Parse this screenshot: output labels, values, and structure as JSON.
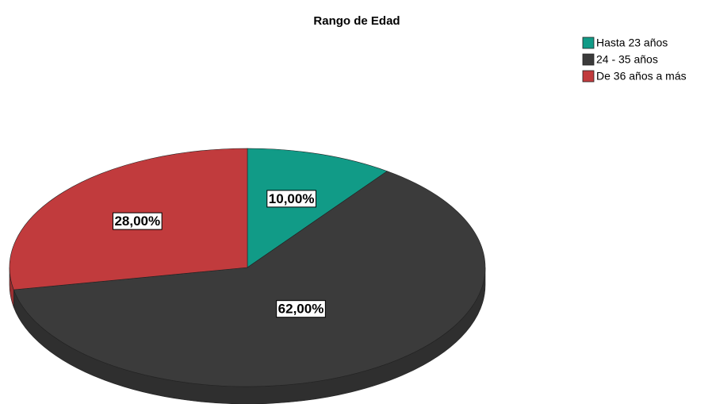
{
  "chart_data": {
    "type": "pie",
    "title": "Rango de Edad",
    "categories": [
      "Hasta 23 años",
      "24 - 35 años",
      "De 36 años a más"
    ],
    "values": [
      10,
      62,
      28
    ],
    "value_labels": [
      "10,00%",
      "62,00%",
      "28,00%"
    ],
    "colors": [
      "#119b87",
      "#3b3b3b",
      "#c13b3d"
    ],
    "legend": "top-right"
  }
}
